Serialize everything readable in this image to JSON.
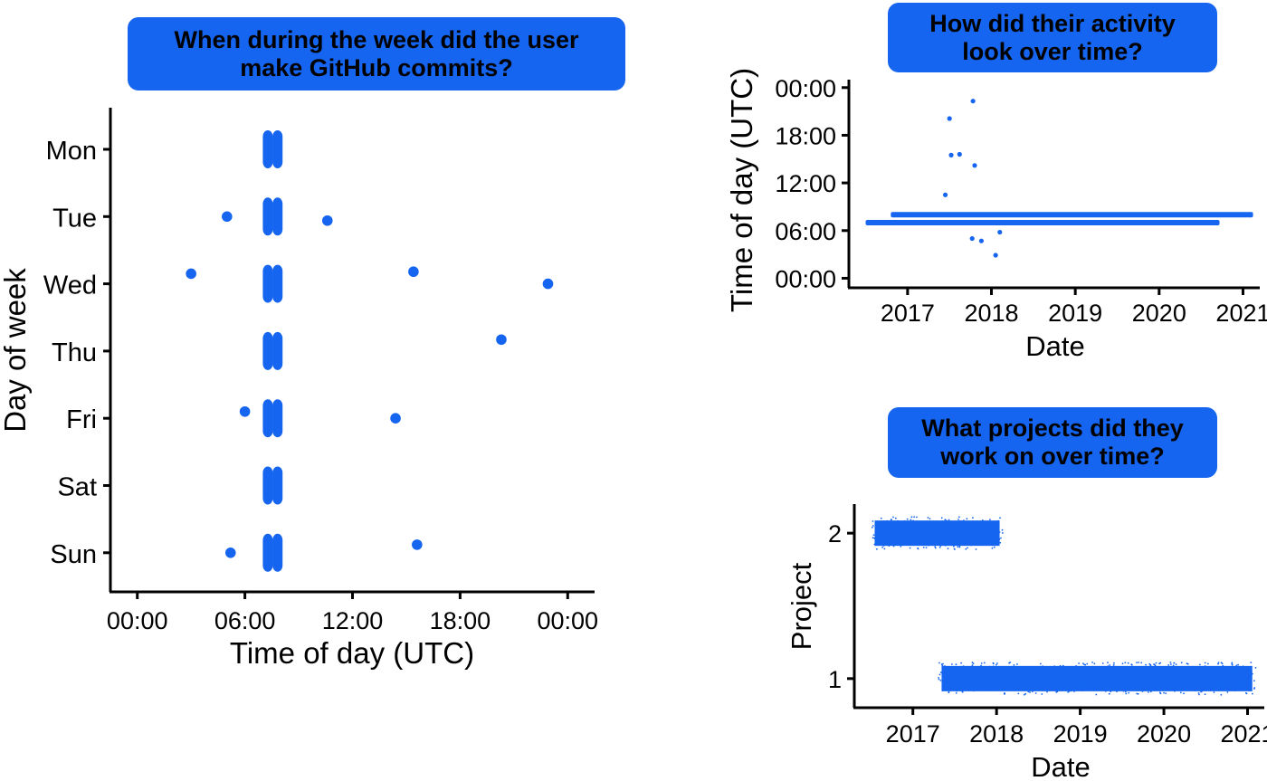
{
  "colors": {
    "accent": "#1565f0",
    "axis": "#000000"
  },
  "chart_data": [
    {
      "type": "scatter",
      "title_lines": [
        "When during the week did the user",
        "make GitHub commits?"
      ],
      "xlabel": "Time of day (UTC)",
      "ylabel": "Day of week",
      "xlim": [
        -1.5,
        25.5
      ],
      "x_ticks": [
        0,
        6,
        12,
        18,
        24
      ],
      "x_tick_labels": [
        "00:00",
        "06:00",
        "12:00",
        "18:00",
        "00:00"
      ],
      "categories": [
        "Mon",
        "Tue",
        "Wed",
        "Thu",
        "Fri",
        "Sat",
        "Sun"
      ],
      "points": [
        {
          "day": "Tue",
          "hour": 5.0,
          "jitter": 0.0
        },
        {
          "day": "Tue",
          "hour": 10.6,
          "jitter": -0.06
        },
        {
          "day": "Wed",
          "hour": 3.0,
          "jitter": 0.15
        },
        {
          "day": "Wed",
          "hour": 15.4,
          "jitter": 0.18
        },
        {
          "day": "Wed",
          "hour": 22.9,
          "jitter": 0.0
        },
        {
          "day": "Thu",
          "hour": 20.3,
          "jitter": 0.17
        },
        {
          "day": "Fri",
          "hour": 6.0,
          "jitter": 0.1
        },
        {
          "day": "Fri",
          "hour": 14.4,
          "jitter": 0.0
        },
        {
          "day": "Sun",
          "hour": 5.2,
          "jitter": 0.0
        },
        {
          "day": "Sun",
          "hour": 15.6,
          "jitter": 0.12
        }
      ],
      "bands": [
        {
          "day": "Mon",
          "hours": [
            7.0,
            8.1
          ]
        },
        {
          "day": "Tue",
          "hours": [
            7.0,
            8.1
          ]
        },
        {
          "day": "Wed",
          "hours": [
            7.0,
            8.1
          ]
        },
        {
          "day": "Thu",
          "hours": [
            7.0,
            8.1
          ]
        },
        {
          "day": "Fri",
          "hours": [
            7.0,
            8.1
          ]
        },
        {
          "day": "Sat",
          "hours": [
            7.0,
            8.1
          ]
        },
        {
          "day": "Sun",
          "hours": [
            7.0,
            8.1
          ]
        }
      ]
    },
    {
      "type": "scatter",
      "title_lines": [
        "How did their activity",
        "look over time?"
      ],
      "xlabel": "Date",
      "ylabel": "Time of day (UTC)",
      "xlim": [
        2016.3,
        2021.2
      ],
      "ylim": [
        -1.2,
        25.0
      ],
      "x_ticks": [
        2017,
        2018,
        2019,
        2020,
        2021
      ],
      "x_tick_labels": [
        "2017",
        "2018",
        "2019",
        "2020",
        "2021"
      ],
      "y_ticks": [
        0,
        6,
        12,
        18,
        24
      ],
      "y_tick_labels": [
        "00:00",
        "06:00",
        "12:00",
        "18:00",
        "00:00"
      ],
      "bands": [
        {
          "date_range": [
            2016.5,
            2020.72
          ],
          "hour": 7.0
        },
        {
          "date_range": [
            2016.8,
            2021.12
          ],
          "hour": 8.0
        }
      ],
      "points": [
        {
          "date": 2017.78,
          "hour": 22.3
        },
        {
          "date": 2017.5,
          "hour": 20.1
        },
        {
          "date": 2017.52,
          "hour": 15.5
        },
        {
          "date": 2017.62,
          "hour": 15.6
        },
        {
          "date": 2017.8,
          "hour": 14.2
        },
        {
          "date": 2017.45,
          "hour": 10.5
        },
        {
          "date": 2017.77,
          "hour": 5.0
        },
        {
          "date": 2017.88,
          "hour": 4.7
        },
        {
          "date": 2018.1,
          "hour": 5.8
        },
        {
          "date": 2018.05,
          "hour": 2.9
        }
      ]
    },
    {
      "type": "scatter",
      "title_lines": [
        "What projects did they",
        "work on over time?"
      ],
      "xlabel": "Date",
      "ylabel": "Project",
      "xlim": [
        2016.3,
        2021.2
      ],
      "ylim": [
        0.8,
        2.2
      ],
      "x_ticks": [
        2017,
        2018,
        2019,
        2020,
        2021
      ],
      "x_tick_labels": [
        "2017",
        "2018",
        "2019",
        "2020",
        "2021"
      ],
      "y_ticks": [
        1,
        2
      ],
      "y_tick_labels": [
        "1",
        "2"
      ],
      "series": [
        {
          "name": "2",
          "project": 2,
          "date_range": [
            2016.5,
            2018.08
          ]
        },
        {
          "name": "1",
          "project": 1,
          "date_range": [
            2017.3,
            2021.1
          ]
        }
      ]
    }
  ]
}
